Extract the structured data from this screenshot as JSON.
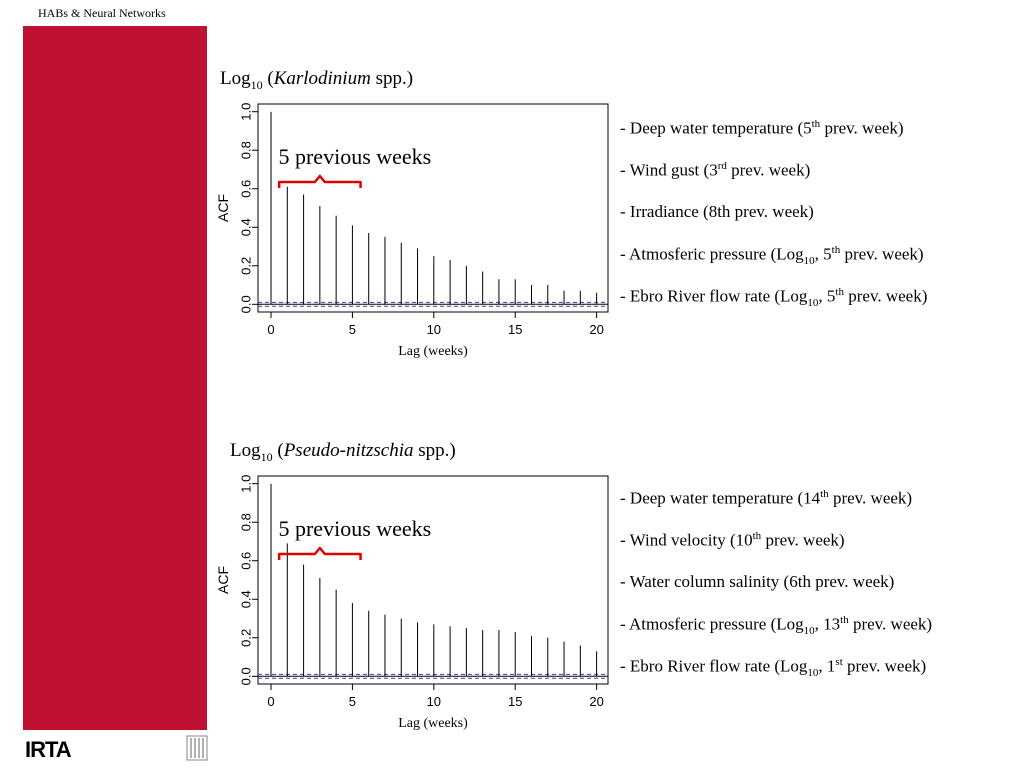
{
  "header": {
    "title": "HABs & Neural Networks"
  },
  "brand": {
    "logo": "IRTA",
    "bar_color": "#BE1134",
    "emblem_icon": "columns-emblem-icon"
  },
  "charts": [
    {
      "title": {
        "prefix": "Log",
        "sub": "10",
        "open": " (",
        "species": "Karlodinium",
        "suffix": " spp.)"
      },
      "annotation": "5 previous weeks",
      "predictors": [
        {
          "text": "- Deep water temperature (5",
          "sup": "th",
          "tail": " prev. week)"
        },
        {
          "text": "- Wind gust (3",
          "sup": "rd",
          "tail": " prev. week)"
        },
        {
          "text": "- Irradiance (8th prev. week)"
        },
        {
          "text": "- Atmosferic pressure (Log",
          "sub": "10",
          "mid": ", 5",
          "sup": "th",
          "tail": " prev. week)"
        },
        {
          "text": "- Ebro River flow rate (Log",
          "sub": "10",
          "mid": ", 5",
          "sup": "th",
          "tail": " prev. week)"
        }
      ]
    },
    {
      "title": {
        "prefix": "Log",
        "sub": "10",
        "open": " (",
        "species": "Pseudo-nitzschia",
        "suffix": " spp.)"
      },
      "annotation": "5 previous weeks",
      "predictors": [
        {
          "text": "- Deep water temperature (14",
          "sup": "th",
          "tail": " prev. week)"
        },
        {
          "text": "- Wind velocity (10",
          "sup": "th",
          "tail": " prev. week)"
        },
        {
          "text": "- Water column salinity (6th prev. week)"
        },
        {
          "text": "- Atmosferic pressure (Log",
          "sub": "10",
          "mid": ", 13",
          "sup": "th",
          "tail": " prev. week)"
        },
        {
          "text": "- Ebro River flow rate (Log",
          "sub": "10",
          "mid": ", 1",
          "sup": "st",
          "tail": " prev. week)"
        }
      ]
    }
  ],
  "chart_data": [
    {
      "type": "bar",
      "x": [
        0,
        1,
        2,
        3,
        4,
        5,
        6,
        7,
        8,
        9,
        10,
        11,
        12,
        13,
        14,
        15,
        16,
        17,
        18,
        19,
        20
      ],
      "values": [
        1.0,
        0.61,
        0.57,
        0.51,
        0.46,
        0.41,
        0.37,
        0.35,
        0.32,
        0.29,
        0.25,
        0.23,
        0.2,
        0.17,
        0.13,
        0.13,
        0.1,
        0.1,
        0.07,
        0.07,
        0.06
      ],
      "xlabel": "Lag  (weeks)",
      "ylabel": "ACF",
      "xticks": [
        0,
        5,
        10,
        15,
        20
      ],
      "yticks": [
        "0.0",
        "0.2",
        "0.4",
        "0.6",
        "0.8",
        "1.0"
      ],
      "xlim": [
        -0.8,
        20.7
      ],
      "ylim": [
        -0.04,
        1.04
      ],
      "confidence_band": 0.01,
      "annotation_range": [
        0.5,
        5.5
      ],
      "colors": {
        "bars": "#000000",
        "band": "#3B3BBB",
        "bracket": "#E00000"
      }
    },
    {
      "type": "bar",
      "x": [
        0,
        1,
        2,
        3,
        4,
        5,
        6,
        7,
        8,
        9,
        10,
        11,
        12,
        13,
        14,
        15,
        16,
        17,
        18,
        19,
        20
      ],
      "values": [
        1.0,
        0.69,
        0.58,
        0.51,
        0.45,
        0.38,
        0.34,
        0.32,
        0.3,
        0.28,
        0.27,
        0.26,
        0.25,
        0.24,
        0.24,
        0.23,
        0.21,
        0.2,
        0.18,
        0.16,
        0.13
      ],
      "xlabel": "Lag (weeks)",
      "ylabel": "ACF",
      "xticks": [
        0,
        5,
        10,
        15,
        20
      ],
      "yticks": [
        "0.0",
        "0.2",
        "0.4",
        "0.6",
        "0.8",
        "1.0"
      ],
      "xlim": [
        -0.8,
        20.7
      ],
      "ylim": [
        -0.04,
        1.04
      ],
      "confidence_band": 0.01,
      "annotation_range": [
        0.5,
        5.5
      ],
      "colors": {
        "bars": "#000000",
        "band": "#3B3BBB",
        "bracket": "#E00000"
      }
    }
  ]
}
